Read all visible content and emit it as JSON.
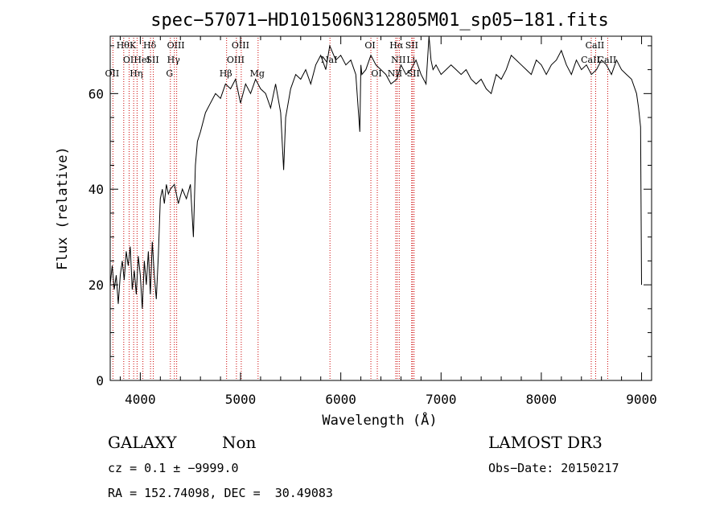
{
  "chart_data": {
    "type": "line",
    "title": "spec−57071−HD101506N312805M01_sp05−181.fits",
    "xlabel": "Wavelength (Å)",
    "ylabel": "Flux (relative)",
    "xlim": [
      3700,
      9100
    ],
    "ylim": [
      0,
      72
    ],
    "x_ticks": [
      4000,
      5000,
      6000,
      7000,
      8000,
      9000
    ],
    "y_ticks": [
      0,
      20,
      40,
      60
    ],
    "series": [
      {
        "x": [
          3700,
          3720,
          3740,
          3760,
          3780,
          3800,
          3820,
          3840,
          3860,
          3880,
          3900,
          3920,
          3940,
          3960,
          3980,
          4000,
          4020,
          4040,
          4060,
          4080,
          4100,
          4120,
          4140,
          4160,
          4180,
          4200,
          4220,
          4240,
          4260,
          4280,
          4300,
          4340,
          4380,
          4420,
          4460,
          4500,
          4530,
          4550,
          4570,
          4600,
          4650,
          4700,
          4750,
          4800,
          4850,
          4900,
          4950,
          5000,
          5050,
          5100,
          5150,
          5200,
          5250,
          5300,
          5350,
          5400,
          5430,
          5450,
          5500,
          5550,
          5600,
          5650,
          5700,
          5750,
          5800,
          5850,
          5890,
          5950,
          6000,
          6050,
          6100,
          6150,
          6190,
          6200,
          6210,
          6250,
          6300,
          6350,
          6400,
          6450,
          6500,
          6560,
          6600,
          6650,
          6700,
          6750,
          6800,
          6850,
          6880,
          6900,
          6920,
          6950,
          7000,
          7050,
          7100,
          7150,
          7200,
          7250,
          7300,
          7350,
          7400,
          7450,
          7500,
          7550,
          7600,
          7650,
          7700,
          7750,
          7800,
          7850,
          7900,
          7950,
          8000,
          8050,
          8100,
          8150,
          8200,
          8250,
          8300,
          8350,
          8400,
          8450,
          8500,
          8550,
          8600,
          8650,
          8700,
          8750,
          8800,
          8850,
          8900,
          8950,
          8970,
          8990,
          9000
        ],
        "y": [
          20,
          24,
          19,
          22,
          16,
          22,
          25,
          21,
          27,
          24,
          28,
          19,
          23,
          18,
          26,
          22,
          15,
          25,
          20,
          27,
          18,
          29,
          22,
          17,
          26,
          38,
          40,
          37,
          41,
          39,
          40,
          41,
          37,
          40,
          38,
          41,
          30,
          45,
          50,
          52,
          56,
          58,
          60,
          59,
          62,
          61,
          63,
          58,
          62,
          60,
          63,
          61,
          60,
          57,
          62,
          56,
          44,
          55,
          61,
          64,
          63,
          65,
          62,
          66,
          68,
          65,
          70,
          67,
          68,
          66,
          67,
          64,
          52,
          66,
          64,
          65,
          68,
          66,
          65,
          64,
          62,
          63,
          66,
          64,
          65,
          67,
          64,
          62,
          72,
          67,
          65,
          66,
          64,
          65,
          66,
          65,
          64,
          65,
          63,
          62,
          63,
          61,
          60,
          64,
          63,
          65,
          68,
          67,
          66,
          65,
          64,
          67,
          66,
          64,
          66,
          67,
          69,
          66,
          64,
          67,
          65,
          66,
          64,
          65,
          67,
          66,
          64,
          67,
          65,
          64,
          63,
          60,
          57,
          53,
          20
        ]
      }
    ],
    "lines": [
      {
        "w": 3727,
        "label": "OII",
        "row": 2
      },
      {
        "w": 3835,
        "label": "Hθ",
        "row": 0
      },
      {
        "w": 3889,
        "label": "OI",
        "row": 1
      },
      {
        "w": 3934,
        "label": "K",
        "row": 0
      },
      {
        "w": 3968,
        "label": "Hη",
        "row": 2
      },
      {
        "w": 4026,
        "label": "HeI",
        "row": 1
      },
      {
        "w": 4102,
        "label": "Hδ",
        "row": 0
      },
      {
        "w": 4130,
        "label": "SII",
        "row": 1
      },
      {
        "w": 4300,
        "label": "G",
        "row": 2
      },
      {
        "w": 4340,
        "label": "Hγ",
        "row": 1
      },
      {
        "w": 4363,
        "label": "OIII",
        "row": 0
      },
      {
        "w": 4861,
        "label": "Hβ",
        "row": 2
      },
      {
        "w": 4959,
        "label": "OIII",
        "row": 1
      },
      {
        "w": 5007,
        "label": "OIII",
        "row": 0
      },
      {
        "w": 5175,
        "label": "Mg",
        "row": 2
      },
      {
        "w": 5892,
        "label": "NaI",
        "row": 1
      },
      {
        "w": 6300,
        "label": "OI",
        "row": 0
      },
      {
        "w": 6364,
        "label": "OI",
        "row": 2
      },
      {
        "w": 6548,
        "label": "NII",
        "row": 2
      },
      {
        "w": 6563,
        "label": "Hα",
        "row": 0
      },
      {
        "w": 6583,
        "label": "NII",
        "row": 1
      },
      {
        "w": 6707,
        "label": "Li",
        "row": 1
      },
      {
        "w": 6716,
        "label": "SII",
        "row": 0
      },
      {
        "w": 6731,
        "label": "SII",
        "row": 2
      },
      {
        "w": 8498,
        "label": "CaII",
        "row": 1
      },
      {
        "w": 8542,
        "label": "CaII",
        "row": 0
      },
      {
        "w": 8662,
        "label": "CaII",
        "row": 1
      }
    ],
    "colors": {
      "spectrum": "#000000",
      "lines": "#cc0000"
    }
  },
  "info": {
    "class": "GALAXY",
    "subclass": "Non",
    "survey": "LAMOST DR3",
    "cz": "cz = 0.1 ± −9999.0",
    "obs_date": "Obs−Date: 20150217",
    "radec": "RA = 152.74098, DEC =  30.49083"
  }
}
